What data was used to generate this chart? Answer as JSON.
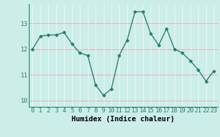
{
  "x": [
    0,
    1,
    2,
    3,
    4,
    5,
    6,
    7,
    8,
    9,
    10,
    11,
    12,
    13,
    14,
    15,
    16,
    17,
    18,
    19,
    20,
    21,
    22,
    23
  ],
  "y": [
    12.0,
    12.5,
    12.55,
    12.55,
    12.65,
    12.2,
    11.85,
    11.75,
    10.6,
    10.2,
    10.45,
    11.75,
    12.35,
    13.45,
    13.45,
    12.6,
    12.15,
    12.8,
    12.0,
    11.85,
    11.55,
    11.2,
    10.75,
    11.15
  ],
  "line_color": "#2a7d6e",
  "marker": "D",
  "marker_size": 2.5,
  "bg_color": "#cceee8",
  "grid_color": "#f5f5f5",
  "grid_color_h": "#f0a0a0",
  "xlabel": "Humidex (Indice chaleur)",
  "xlabel_fontsize": 7.5,
  "tick_fontsize": 6.5,
  "ylim": [
    9.75,
    13.75
  ],
  "yticks": [
    10,
    11,
    12,
    13
  ],
  "xlim": [
    -0.5,
    23.5
  ],
  "xticks": [
    0,
    1,
    2,
    3,
    4,
    5,
    6,
    7,
    8,
    9,
    10,
    11,
    12,
    13,
    14,
    15,
    16,
    17,
    18,
    19,
    20,
    21,
    22,
    23
  ],
  "linewidth": 1.0
}
